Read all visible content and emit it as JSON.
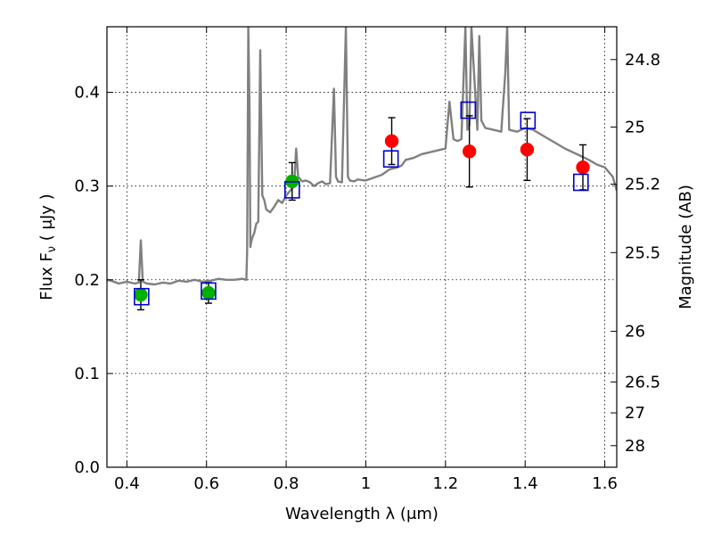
{
  "chart_data": {
    "type": "scatter",
    "xlabel": "Wavelength  λ (μm)",
    "ylabel": "Flux  F",
    "ylabel_sub": "ν",
    "ylabel_suffix": "  ( μJy )",
    "y2label": "Magnitude (AB)",
    "xlim": [
      0.35,
      1.63
    ],
    "ylim": [
      0.0,
      0.47
    ],
    "grid": true,
    "x_ticks": [
      0.4,
      0.6,
      0.8,
      1.0,
      1.2,
      1.4,
      1.6
    ],
    "x_tick_labels": [
      "0.4",
      "0.6",
      "0.8",
      "1",
      "1.2",
      "1.4",
      "1.6"
    ],
    "y_ticks": [
      0.0,
      0.1,
      0.2,
      0.3,
      0.4
    ],
    "y_tick_labels": [
      "0.0",
      "0.1",
      "0.2",
      "0.3",
      "0.4"
    ],
    "y2_ticks": [
      {
        "flux": 0.435,
        "label": "24.8"
      },
      {
        "flux": 0.363,
        "label": "25"
      },
      {
        "flux": 0.302,
        "label": "25.2"
      },
      {
        "flux": 0.229,
        "label": "25.5"
      },
      {
        "flux": 0.145,
        "label": "26"
      },
      {
        "flux": 0.091,
        "label": "26.5"
      },
      {
        "flux": 0.058,
        "label": "27"
      },
      {
        "flux": 0.023,
        "label": "28"
      }
    ],
    "colors": {
      "spectrum": "#808080",
      "green_points": "#00b000",
      "red_points": "#ff0000",
      "model_squares": "#0000cc",
      "errorbars": "#000000",
      "grid": "#000000"
    },
    "series": [
      {
        "marker": "circle-green",
        "x": [
          0.435,
          0.605,
          0.815
        ],
        "y": [
          0.184,
          0.186,
          0.305
        ],
        "err": [
          0.016,
          0.011,
          0.02
        ]
      },
      {
        "marker": "circle-red",
        "x": [
          1.065,
          1.26,
          1.405,
          1.545
        ],
        "y": [
          0.348,
          0.337,
          0.339,
          0.32
        ],
        "err": [
          0.025,
          0.038,
          0.033,
          0.024
        ]
      },
      {
        "marker": "square-blue",
        "x": [
          0.437,
          0.605,
          0.815,
          1.063,
          1.257,
          1.407,
          1.54
        ],
        "y": [
          0.182,
          0.188,
          0.296,
          0.329,
          0.381,
          0.37,
          0.304
        ]
      }
    ],
    "spectrum": {
      "x": [
        0.35,
        0.36,
        0.38,
        0.4,
        0.42,
        0.43,
        0.435,
        0.44,
        0.45,
        0.47,
        0.49,
        0.51,
        0.53,
        0.55,
        0.57,
        0.59,
        0.61,
        0.63,
        0.65,
        0.67,
        0.69,
        0.7,
        0.702,
        0.705,
        0.708,
        0.71,
        0.712,
        0.715,
        0.72,
        0.725,
        0.73,
        0.735,
        0.74,
        0.745,
        0.75,
        0.76,
        0.77,
        0.78,
        0.79,
        0.8,
        0.81,
        0.82,
        0.825,
        0.83,
        0.84,
        0.85,
        0.86,
        0.87,
        0.88,
        0.89,
        0.9,
        0.91,
        0.92,
        0.925,
        0.93,
        0.94,
        0.95,
        0.955,
        0.96,
        0.97,
        0.98,
        1.0,
        1.02,
        1.04,
        1.06,
        1.08,
        1.09,
        1.1,
        1.12,
        1.14,
        1.16,
        1.18,
        1.2,
        1.21,
        1.22,
        1.23,
        1.24,
        1.25,
        1.255,
        1.26,
        1.265,
        1.28,
        1.285,
        1.29,
        1.3,
        1.32,
        1.34,
        1.35,
        1.355,
        1.36,
        1.38,
        1.4,
        1.42,
        1.44,
        1.46,
        1.48,
        1.5,
        1.52,
        1.54,
        1.56,
        1.58,
        1.6,
        1.62,
        1.63
      ],
      "y": [
        0.2,
        0.199,
        0.196,
        0.198,
        0.196,
        0.197,
        0.242,
        0.198,
        0.196,
        0.195,
        0.197,
        0.196,
        0.199,
        0.198,
        0.2,
        0.198,
        0.199,
        0.201,
        0.2,
        0.2,
        0.201,
        0.2,
        0.23,
        0.47,
        0.38,
        0.235,
        0.24,
        0.245,
        0.25,
        0.26,
        0.262,
        0.445,
        0.29,
        0.285,
        0.275,
        0.272,
        0.278,
        0.285,
        0.282,
        0.29,
        0.295,
        0.3,
        0.34,
        0.31,
        0.305,
        0.306,
        0.304,
        0.3,
        0.303,
        0.305,
        0.302,
        0.303,
        0.404,
        0.31,
        0.305,
        0.304,
        0.47,
        0.31,
        0.306,
        0.305,
        0.307,
        0.306,
        0.309,
        0.312,
        0.318,
        0.32,
        0.322,
        0.328,
        0.33,
        0.334,
        0.336,
        0.338,
        0.34,
        0.39,
        0.35,
        0.348,
        0.35,
        0.47,
        0.36,
        0.365,
        0.47,
        0.36,
        0.46,
        0.37,
        0.362,
        0.36,
        0.358,
        0.42,
        0.47,
        0.36,
        0.358,
        0.362,
        0.36,
        0.355,
        0.35,
        0.345,
        0.34,
        0.336,
        0.332,
        0.328,
        0.323,
        0.32,
        0.31,
        0.295
      ]
    }
  }
}
